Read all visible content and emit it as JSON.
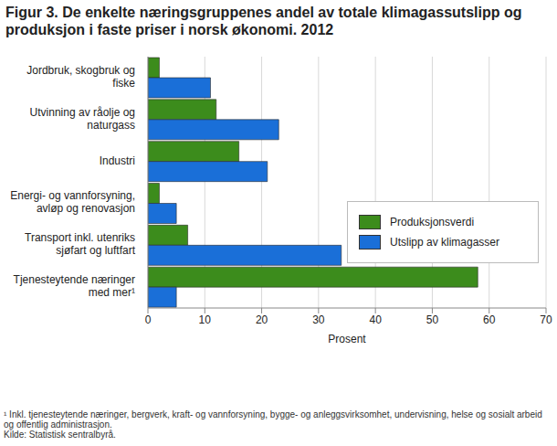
{
  "chart_data": {
    "type": "bar",
    "orientation": "horizontal",
    "title": "Figur 3. De enkelte næringsgruppenes andel av totale klimagassutslipp og produksjon i faste priser i norsk økonomi. 2012",
    "xlabel": "Prosent",
    "categories": [
      "Jordbruk, skogbruk og\nfiske",
      "Utvinning av råolje og\nnaturgass",
      "Industri",
      "Energi- og vannforsyning,\navløp og renovasjon",
      "Transport inkl. utenriks\nsjøfart og luftfart",
      "Tjenesteytende næringer\nmed mer¹"
    ],
    "series": [
      {
        "name": "Produksjonsverdi",
        "color": "#3c8c1c",
        "values": [
          2,
          12,
          16,
          2,
          7,
          58
        ]
      },
      {
        "name": "Utslipp av klimagasser",
        "color": "#1a6fd8",
        "values": [
          11,
          23,
          21,
          5,
          34,
          5
        ]
      }
    ],
    "xlim": [
      0,
      70
    ],
    "xticks": [
      0,
      10,
      20,
      30,
      40,
      50,
      60,
      70
    ],
    "grid": true,
    "legend": "right",
    "footnote": "¹ Inkl. tjenesteytende næringer, bergverk, kraft- og vannforsyning, bygge- og anleggsvirksomhet, undervisning, helse og sosialt arbeid og offentlig administrasjon.",
    "source": "Kilde: Statistisk sentralbyrå."
  }
}
